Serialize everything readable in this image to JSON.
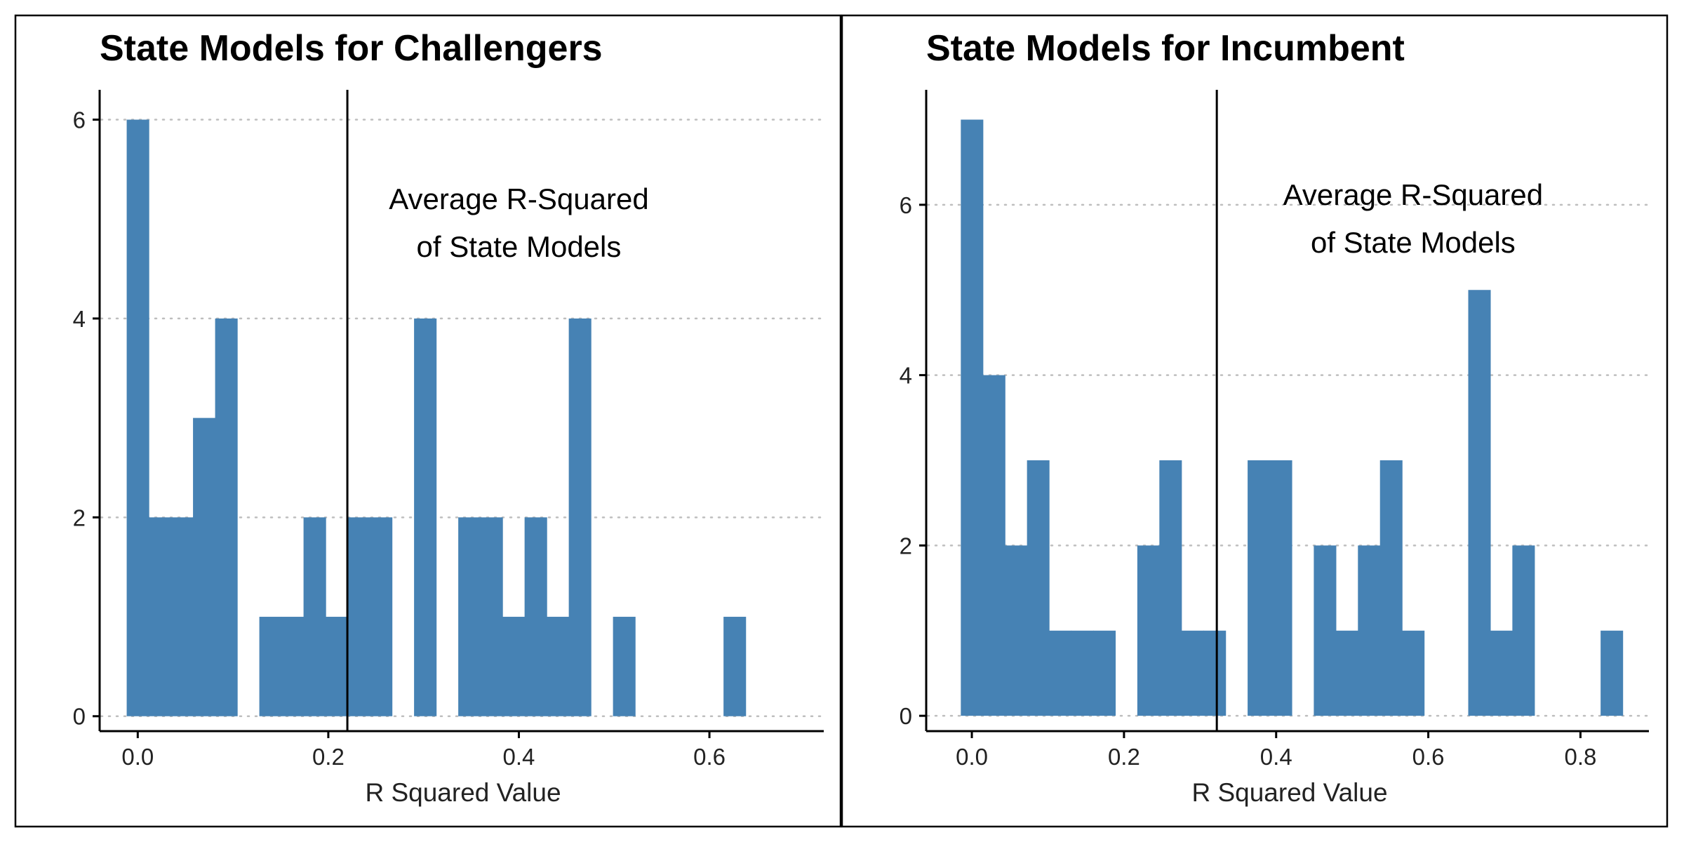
{
  "colors": {
    "bar": "#4682B4",
    "grid": "#BEBEBE",
    "axis": "#000000",
    "vline": "#000000",
    "background": "#FFFFFF"
  },
  "chart_data": [
    {
      "type": "bar",
      "title": "State Models for Challengers",
      "xlabel": "R Squared Value",
      "ylabel": "",
      "xlim": [
        -0.04,
        0.72
      ],
      "ylim": [
        -0.15,
        6.3
      ],
      "xticks": [
        0.0,
        0.2,
        0.4,
        0.6
      ],
      "xtick_labels": [
        "0.0",
        "0.2",
        "0.4",
        "0.6"
      ],
      "yticks": [
        0,
        2,
        4,
        6
      ],
      "ytick_labels": [
        "0",
        "2",
        "4",
        "6"
      ],
      "grid": "horizontal-dotted",
      "bin_width": 0.0232,
      "bin_start": -0.0116,
      "counts": [
        6,
        2,
        2,
        3,
        4,
        0,
        1,
        1,
        2,
        1,
        2,
        2,
        0,
        4,
        0,
        2,
        2,
        1,
        2,
        1,
        4,
        0,
        1,
        0,
        0,
        0,
        0,
        1
      ],
      "reference_line": {
        "x": 0.22,
        "label_line1": "Average R-Squared",
        "label_line2": "of State Models"
      },
      "annotation_anchor": {
        "x": 0.4,
        "y": 5.1
      }
    },
    {
      "type": "bar",
      "title": "State Models for Incumbent",
      "xlabel": "R Squared Value",
      "ylabel": "",
      "xlim": [
        -0.06,
        0.89
      ],
      "ylim": [
        -0.18,
        7.35
      ],
      "xticks": [
        0.0,
        0.2,
        0.4,
        0.6,
        0.8
      ],
      "xtick_labels": [
        "0.0",
        "0.2",
        "0.4",
        "0.6",
        "0.8"
      ],
      "yticks": [
        0,
        2,
        4,
        6
      ],
      "ytick_labels": [
        "0",
        "2",
        "4",
        "6"
      ],
      "grid": "horizontal-dotted",
      "bin_width": 0.029,
      "bin_start": -0.0145,
      "counts": [
        7,
        4,
        2,
        3,
        1,
        1,
        1,
        0,
        2,
        3,
        1,
        1,
        0,
        3,
        3,
        0,
        2,
        1,
        2,
        3,
        1,
        0,
        0,
        5,
        1,
        2,
        0,
        0,
        0,
        1
      ],
      "reference_line": {
        "x": 0.322,
        "label_line1": "Average R-Squared",
        "label_line2": "of State Models"
      },
      "annotation_anchor": {
        "x": 0.58,
        "y": 6.0
      }
    }
  ]
}
